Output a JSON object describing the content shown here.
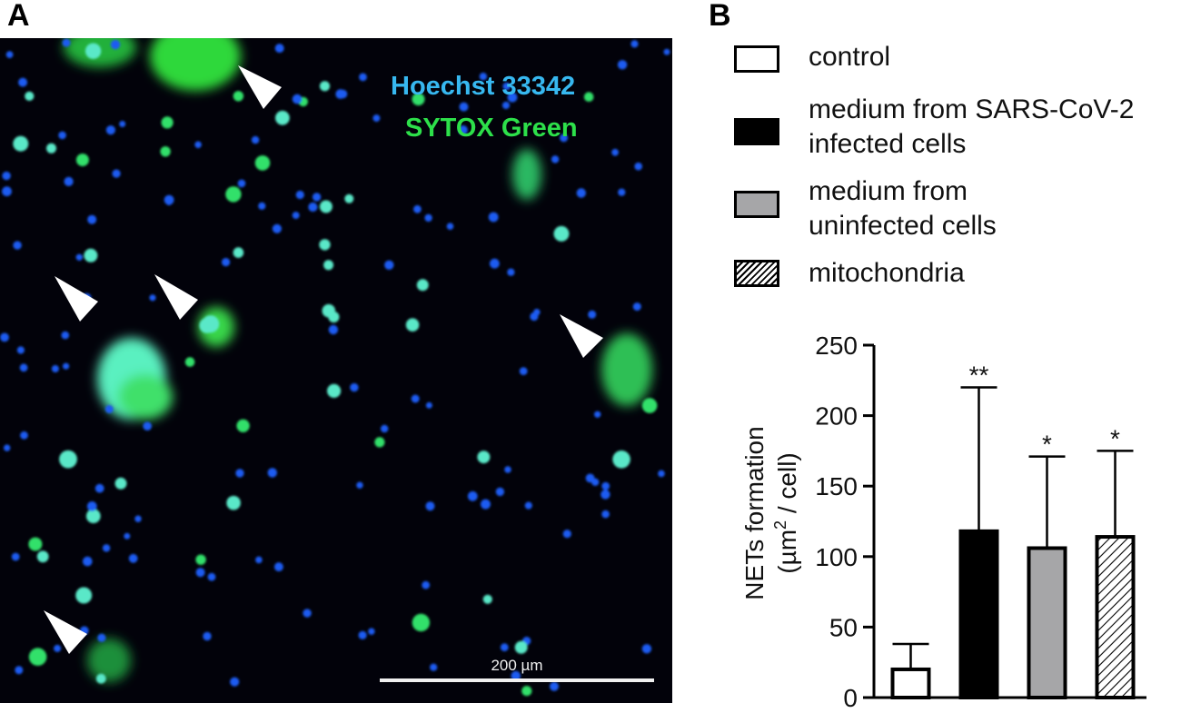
{
  "panels": {
    "a_label": "A",
    "b_label": "B"
  },
  "micrograph": {
    "stain1": "Hoechst 33342",
    "stain2": "SYTOX Green",
    "stain1_color": "#37b8f0",
    "stain2_color": "#2de04a",
    "scalebar_label": "200 µm"
  },
  "legend": [
    {
      "label_lines": [
        "control"
      ],
      "fill": "white"
    },
    {
      "label_lines": [
        "medium from SARS-CoV-2",
        "infected cells"
      ],
      "fill": "black"
    },
    {
      "label_lines": [
        "medium from",
        "uninfected cells"
      ],
      "fill": "gray"
    },
    {
      "label_lines": [
        "mitochondria"
      ],
      "fill": "hatched"
    }
  ],
  "chart_data": {
    "type": "bar",
    "categories": [
      "control",
      "medium from SARS-CoV-2 infected cells",
      "medium from uninfected cells",
      "mitochondria"
    ],
    "values": [
      20,
      118,
      106,
      114
    ],
    "error_upper": [
      38,
      220,
      171,
      175
    ],
    "significance": [
      "",
      "**",
      "*",
      "*"
    ],
    "fills": [
      "#ffffff",
      "#000000",
      "#a6a6a8",
      "hatched"
    ],
    "ylabel_line1": "NETs formation",
    "ylabel_line2_pre": "(µm",
    "ylabel_line2_sup": "2",
    "ylabel_line2_post": " / cell)",
    "ylim": [
      0,
      250
    ],
    "yticks": [
      0,
      50,
      100,
      150,
      200,
      250
    ]
  }
}
